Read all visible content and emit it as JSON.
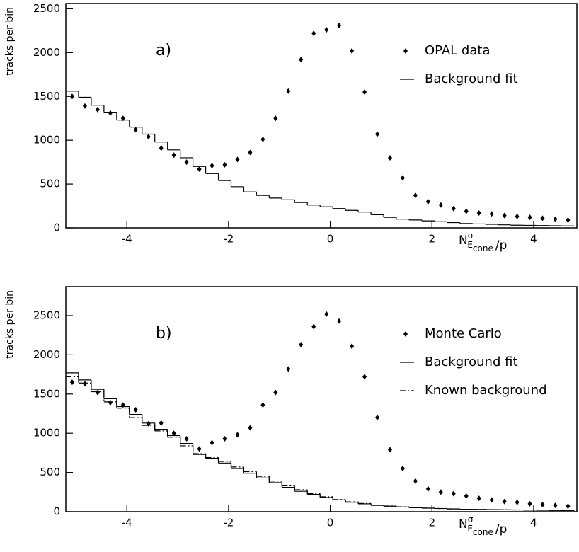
{
  "chart_data": [
    {
      "type": "scatter",
      "annotation": "a)",
      "ylabel": "tracks per bin",
      "xlabel": {
        "base": "N",
        "sup": "σ",
        "sub": "E",
        "subsub": "cone",
        "tail": "/p"
      },
      "xlim": [
        -5.2,
        4.85
      ],
      "ylim": [
        0,
        2560
      ],
      "xticks": [
        -4,
        -2,
        0,
        2,
        4
      ],
      "yticks": [
        0,
        500,
        1000,
        1500,
        2000,
        2500
      ],
      "x": [
        -5.075,
        -4.825,
        -4.575,
        -4.325,
        -4.075,
        -3.825,
        -3.575,
        -3.325,
        -3.075,
        -2.825,
        -2.575,
        -2.325,
        -2.075,
        -1.825,
        -1.575,
        -1.325,
        -1.075,
        -0.825,
        -0.575,
        -0.325,
        -0.075,
        0.175,
        0.425,
        0.675,
        0.925,
        1.175,
        1.425,
        1.675,
        1.925,
        2.175,
        2.425,
        2.675,
        2.925,
        3.175,
        3.425,
        3.675,
        3.925,
        4.175,
        4.425,
        4.675
      ],
      "series": [
        {
          "name": "OPAL data",
          "kind": "marker",
          "color": "#000000",
          "values": [
            1500,
            1390,
            1350,
            1310,
            1250,
            1120,
            1040,
            910,
            830,
            750,
            670,
            710,
            720,
            780,
            860,
            1010,
            1250,
            1560,
            1920,
            2220,
            2260,
            2310,
            2020,
            1550,
            1070,
            800,
            570,
            370,
            300,
            260,
            220,
            190,
            170,
            160,
            140,
            130,
            120,
            110,
            100,
            90
          ]
        },
        {
          "name": "Background fit",
          "kind": "step",
          "color": "#000000",
          "values": [
            1560,
            1490,
            1400,
            1320,
            1230,
            1150,
            1070,
            980,
            890,
            800,
            700,
            620,
            540,
            470,
            410,
            370,
            340,
            320,
            290,
            260,
            240,
            220,
            200,
            180,
            150,
            120,
            100,
            90,
            80,
            70,
            60,
            50,
            45,
            40,
            35,
            30,
            28,
            26,
            24,
            22
          ]
        }
      ]
    },
    {
      "type": "scatter",
      "annotation": "b)",
      "ylabel": "tracks per bin",
      "xlabel": {
        "base": "N",
        "sup": "σ",
        "sub": "E",
        "subsub": "cone",
        "tail": "/p"
      },
      "xlim": [
        -5.2,
        4.85
      ],
      "ylim": [
        0,
        2870
      ],
      "xticks": [
        -4,
        -2,
        0,
        2,
        4
      ],
      "yticks": [
        0,
        500,
        1000,
        1500,
        2000,
        2500
      ],
      "x": [
        -5.075,
        -4.825,
        -4.575,
        -4.325,
        -4.075,
        -3.825,
        -3.575,
        -3.325,
        -3.075,
        -2.825,
        -2.575,
        -2.325,
        -2.075,
        -1.825,
        -1.575,
        -1.325,
        -1.075,
        -0.825,
        -0.575,
        -0.325,
        -0.075,
        0.175,
        0.425,
        0.675,
        0.925,
        1.175,
        1.425,
        1.675,
        1.925,
        2.175,
        2.425,
        2.675,
        2.925,
        3.175,
        3.425,
        3.675,
        3.925,
        4.175,
        4.425,
        4.675
      ],
      "series": [
        {
          "name": "Monte Carlo",
          "kind": "marker",
          "color": "#000000",
          "values": [
            1650,
            1630,
            1520,
            1390,
            1360,
            1300,
            1120,
            1130,
            1000,
            930,
            800,
            880,
            930,
            980,
            1070,
            1360,
            1520,
            1820,
            2130,
            2360,
            2520,
            2430,
            2110,
            1720,
            1200,
            790,
            550,
            390,
            290,
            250,
            230,
            200,
            170,
            150,
            130,
            120,
            100,
            90,
            80,
            70
          ]
        },
        {
          "name": "Background fit",
          "kind": "step",
          "color": "#000000",
          "values": [
            1770,
            1680,
            1560,
            1440,
            1340,
            1240,
            1130,
            1050,
            970,
            870,
            730,
            680,
            620,
            550,
            490,
            430,
            370,
            310,
            260,
            220,
            180,
            150,
            120,
            100,
            80,
            70,
            60,
            50,
            45,
            40,
            35,
            30,
            28,
            26,
            24,
            22,
            20,
            18,
            16,
            15
          ]
        },
        {
          "name": "Known background",
          "kind": "step-dashdot",
          "color": "#000000",
          "values": [
            1720,
            1640,
            1530,
            1400,
            1320,
            1200,
            1100,
            1030,
            950,
            840,
            740,
            690,
            640,
            570,
            510,
            450,
            390,
            330,
            280,
            230,
            190,
            155,
            125,
            105,
            85,
            72,
            62,
            52,
            46,
            41,
            36,
            31,
            29,
            27,
            25,
            23,
            21,
            19,
            17,
            16
          ]
        }
      ]
    }
  ]
}
